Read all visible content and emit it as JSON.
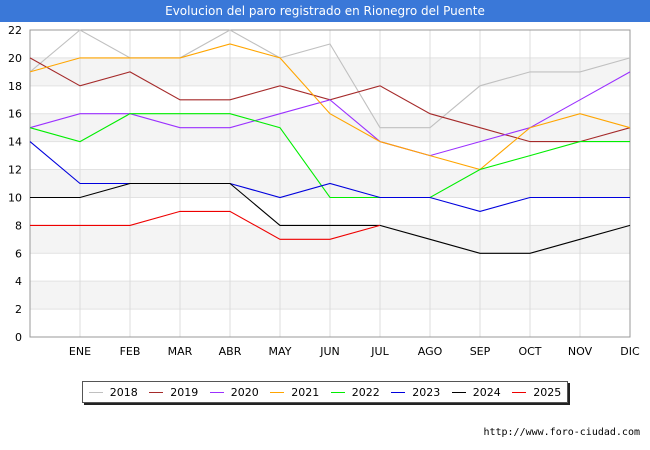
{
  "header": {
    "title": "Evolucion del paro registrado en Rionegro del Puente"
  },
  "footer": {
    "url": "http://www.foro-ciudad.com"
  },
  "chart_data": {
    "type": "line",
    "title": "Evolucion del paro registrado en Rionegro del Puente",
    "categories": [
      "",
      "ENE",
      "FEB",
      "MAR",
      "ABR",
      "MAY",
      "JUN",
      "JUL",
      "AGO",
      "SEP",
      "OCT",
      "NOV",
      "DIC"
    ],
    "yticks": [
      "0",
      "2",
      "4",
      "6",
      "8",
      "10",
      "12",
      "14",
      "16",
      "18",
      "20",
      "22"
    ],
    "ylim": [
      0,
      22
    ],
    "grid": true,
    "legend_position": "bottom",
    "series": [
      {
        "name": "2018",
        "color": "#c0c0c0",
        "values": [
          19,
          22,
          20,
          20,
          22,
          20,
          21,
          15,
          15,
          18,
          19,
          19,
          20
        ]
      },
      {
        "name": "2019",
        "color": "#a52a2a",
        "values": [
          20,
          18,
          19,
          17,
          17,
          18,
          17,
          18,
          16,
          15,
          14,
          14,
          15
        ]
      },
      {
        "name": "2020",
        "color": "#9b30ff",
        "values": [
          15,
          16,
          16,
          15,
          15,
          16,
          17,
          14,
          13,
          14,
          15,
          17,
          19
        ]
      },
      {
        "name": "2021",
        "color": "#ffa500",
        "values": [
          19,
          20,
          20,
          20,
          21,
          20,
          16,
          14,
          13,
          12,
          15,
          16,
          15
        ]
      },
      {
        "name": "2022",
        "color": "#00ee00",
        "values": [
          15,
          14,
          16,
          16,
          16,
          15,
          10,
          10,
          10,
          12,
          13,
          14,
          14
        ]
      },
      {
        "name": "2023",
        "color": "#0000dd",
        "values": [
          14,
          11,
          11,
          11,
          11,
          10,
          11,
          10,
          10,
          9,
          10,
          10,
          10
        ]
      },
      {
        "name": "2024",
        "color": "#000000",
        "values": [
          10,
          10,
          11,
          11,
          11,
          8,
          8,
          8,
          7,
          6,
          6,
          7,
          8
        ]
      },
      {
        "name": "2025",
        "color": "#ee0000",
        "values": [
          8,
          8,
          8,
          9,
          9,
          7,
          7,
          8,
          null,
          null,
          null,
          null,
          null
        ]
      }
    ]
  }
}
